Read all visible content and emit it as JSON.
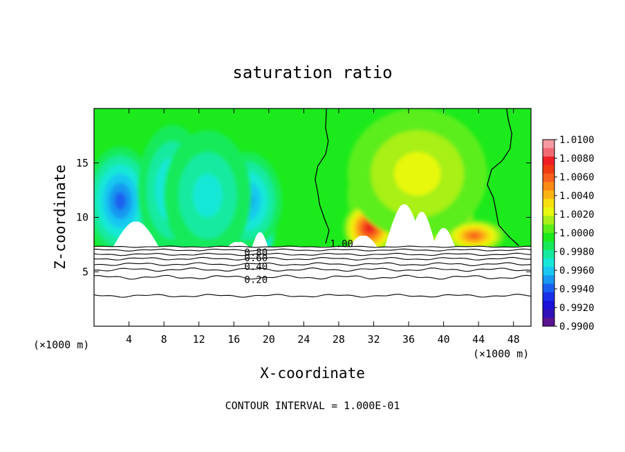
{
  "chart_data": {
    "type": "heatmap",
    "title": "saturation ratio",
    "xlabel": "X-coordinate",
    "ylabel": "Z-coordinate",
    "x_unit_left": "(×1000 m)",
    "x_unit_right": "(×1000 m)",
    "xlim": [
      0,
      50
    ],
    "ylim": [
      0,
      20
    ],
    "x_ticks": [
      4,
      8,
      12,
      16,
      20,
      24,
      28,
      32,
      36,
      40,
      44,
      48
    ],
    "y_ticks": [
      5,
      10,
      15
    ],
    "footer": "CONTOUR INTERVAL = 1.000E-01",
    "colorbar": {
      "labels": [
        "1.0100",
        "1.0080",
        "1.0060",
        "1.0040",
        "1.0020",
        "1.0000",
        "0.9980",
        "0.9960",
        "0.9940",
        "0.9920",
        "0.9900"
      ],
      "colors": [
        "#f59aa0",
        "#f06a72",
        "#ee1e22",
        "#f03a12",
        "#f8601e",
        "#fa8a14",
        "#fcb414",
        "#f8e010",
        "#e8f810",
        "#a8f018",
        "#5cee1a",
        "#1cea1c",
        "#16ea5a",
        "#16eaa0",
        "#18e8d8",
        "#18c8f0",
        "#1898f0",
        "#1a60f0",
        "#1a30e8",
        "#1a10d8",
        "#3010b8",
        "#5a1490"
      ]
    },
    "contours": [
      {
        "label": "1.00",
        "x": 27,
        "y": 7.6
      },
      {
        "label": "0.80",
        "x": 17.2,
        "y": 6.8
      },
      {
        "label": "0.60",
        "x": 17.2,
        "y": 6.3
      },
      {
        "label": "0.40",
        "x": 17.2,
        "y": 5.5
      },
      {
        "label": "0.20",
        "x": 17.2,
        "y": 4.3
      }
    ],
    "field": {
      "background": "#1cea1c",
      "dry_anomalies": [
        {
          "x": 4.5,
          "z": 9.5,
          "rx": 4.6,
          "rz": 3.6,
          "strength": 1.0
        },
        {
          "x": 3.0,
          "z": 11.5,
          "rx": 4.0,
          "rz": 5.0,
          "strength": 0.55
        },
        {
          "x": 9.0,
          "z": 12.5,
          "rx": 4.0,
          "rz": 6.0,
          "strength": 0.35
        },
        {
          "x": 16.5,
          "z": 9.0,
          "rx": 2.5,
          "rz": 3.0,
          "strength": 0.9
        },
        {
          "x": 19.0,
          "z": 9.0,
          "rx": 1.8,
          "rz": 3.0,
          "strength": 0.8
        },
        {
          "x": 17.5,
          "z": 11.5,
          "rx": 4.0,
          "rz": 4.5,
          "strength": 0.45
        },
        {
          "x": 13.0,
          "z": 12.0,
          "rx": 5.0,
          "rz": 6.0,
          "strength": 0.25
        }
      ],
      "moist_anomalies": [
        {
          "x": 35.5,
          "z": 12.0,
          "rx": 6.5,
          "rz": 5.5,
          "strength": 0.75
        },
        {
          "x": 36.0,
          "z": 13.0,
          "rx": 3.0,
          "rz": 3.0,
          "strength": 1.0
        },
        {
          "x": 40.5,
          "z": 10.0,
          "rx": 3.0,
          "rz": 3.0,
          "strength": 0.9
        },
        {
          "x": 31.5,
          "z": 9.0,
          "rx": 3.0,
          "rz": 2.5,
          "strength": 0.85
        },
        {
          "x": 43.5,
          "z": 8.3,
          "rx": 3.5,
          "rz": 1.5,
          "strength": 0.7
        },
        {
          "x": 37.0,
          "z": 14.0,
          "rx": 8.0,
          "rz": 6.0,
          "strength": 0.3
        }
      ],
      "unsaturated_below_z": 7.3
    }
  }
}
